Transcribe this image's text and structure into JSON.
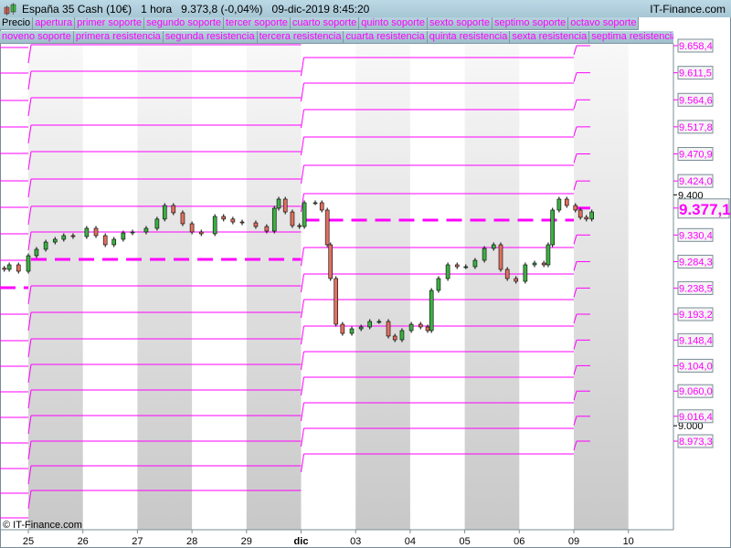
{
  "header": {
    "instrument": "España 35 Cash (10€)",
    "timeframe": "1 hora",
    "last": "9.373,8 (-0,04%)",
    "datetime": "09-dic-2019 8:45:20",
    "site": "IT-Finance.com"
  },
  "legend_row1": [
    "Precio",
    "apertura",
    "primer soporte",
    "segundo soporte",
    "tercer soporte",
    "cuarto soporte",
    "quinto soporte",
    "sexto soporte",
    "septimo soporte",
    "octavo soporte"
  ],
  "legend_row2": [
    "noveno soporte",
    "primera resistencia",
    "segunda resistencia",
    "tercera resistencia",
    "cuarta resistencia",
    "quinta resistencia",
    "sexta resistencia",
    "septima resistencia"
  ],
  "watermark": "© IT-Finance.com",
  "colors": {
    "levels": "#ff00ff",
    "up": "#3cb043",
    "down": "#e07060",
    "axis": "#7a8c96"
  },
  "chart_data": {
    "type": "candlestick",
    "x_tick_labels": [
      "25",
      "26",
      "27",
      "28",
      "29",
      "dic",
      "03",
      "04",
      "05",
      "06",
      "09",
      "10"
    ],
    "y_ticks": [
      "9.400",
      "9.000"
    ],
    "ylim": [
      8800,
      9660
    ],
    "current_price": "9.377,1",
    "current_levels": [
      "9.658,4",
      "9.611,5",
      "9.564,6",
      "9.517,8",
      "9.470,9",
      "9.424,0",
      "9.330,4",
      "9.284,3",
      "9.238,5",
      "9.193,2",
      "9.148,4",
      "9.104,0",
      "9.060,0",
      "9.016,4",
      "8.973,3"
    ],
    "level_periods": [
      {
        "from": -0.52,
        "to": 0,
        "pivot": 9239.1,
        "levels": [
          9655.2,
          9610.9,
          9563.5,
          9517.6,
          9471.7,
          9424.2,
          9378.3,
          9332.5,
          9286.6,
          9193.2,
          9147.3,
          9103.0,
          9058.7,
          9014.4,
          8970.1,
          8925.8,
          8883.1,
          8840.4
        ]
      },
      {
        "from": 0,
        "to": 5,
        "pivot": 9288.2,
        "levels": [
          9660,
          9614.1,
          9568.2,
          9520.8,
          9474.9,
          9427.4,
          9380.1,
          9335.6,
          9242.3,
          9196.4,
          9150.5,
          9106.2,
          9061.9,
          9017.6,
          8973.3,
          8930.6,
          8887.9
        ]
      },
      {
        "from": 5,
        "to": 10,
        "pivot": 9356.2,
        "levels": [
          9637.8,
          9593.5,
          9547.6,
          9500.2,
          9451.1,
          9402.1,
          9308.7,
          9262.8,
          9218.5,
          9172.6,
          9128.4,
          9084.1,
          9039.8,
          8995.5,
          8951.2
        ]
      },
      {
        "from": 10,
        "to": 10.3,
        "pivot": 9377.1,
        "levels": [
          9658.4,
          9611.5,
          9564.6,
          9517.8,
          9470.9,
          9424.0,
          9330.4,
          9284.3,
          9238.5,
          9193.2,
          9148.4,
          9104.0,
          9060.0,
          9016.4,
          8973.3
        ]
      }
    ],
    "prices": [
      [
        -0.44,
        9270.8
      ],
      [
        -0.35,
        9278.7
      ],
      [
        -0.18,
        9267.6
      ],
      [
        0,
        9294.5
      ],
      [
        0.15,
        9305.6
      ],
      [
        0.32,
        9318.2
      ],
      [
        0.49,
        9323.0
      ],
      [
        0.65,
        9329.3
      ],
      [
        0.82,
        9327.7
      ],
      [
        1.07,
        9342.0
      ],
      [
        1.24,
        9329.3
      ],
      [
        1.41,
        9313.5
      ],
      [
        1.57,
        9323.0
      ],
      [
        1.74,
        9334.0
      ],
      [
        1.91,
        9335.6
      ],
      [
        2.16,
        9342.0
      ],
      [
        2.36,
        9358.0
      ],
      [
        2.5,
        9381.5
      ],
      [
        2.66,
        9368.9
      ],
      [
        2.83,
        9349.9
      ],
      [
        3.0,
        9335.6
      ],
      [
        3.17,
        9332.5
      ],
      [
        3.42,
        9362.5
      ],
      [
        3.58,
        9358.0
      ],
      [
        3.75,
        9353.0
      ],
      [
        3.92,
        9351.5
      ],
      [
        4.17,
        9345.1
      ],
      [
        4.37,
        9337.2
      ],
      [
        4.51,
        9376.8
      ],
      [
        4.59,
        9392.6
      ],
      [
        4.71,
        9370.4
      ],
      [
        4.84,
        9346.7
      ],
      [
        4.97,
        9345.1
      ],
      [
        5.06,
        9386.3
      ],
      [
        5.26,
        9386.3
      ],
      [
        5.38,
        9373.6
      ],
      [
        5.48,
        9313.5
      ],
      [
        5.54,
        9255.0
      ],
      [
        5.64,
        9175.8
      ],
      [
        5.76,
        9160.0
      ],
      [
        5.93,
        9167.9
      ],
      [
        6.1,
        9171.1
      ],
      [
        6.26,
        9180.6
      ],
      [
        6.43,
        9180.6
      ],
      [
        6.6,
        9155.3
      ],
      [
        6.72,
        9148.9
      ],
      [
        6.85,
        9164.8
      ],
      [
        7.02,
        9175.8
      ],
      [
        7.19,
        9171.1
      ],
      [
        7.32,
        9164.8
      ],
      [
        7.39,
        9234.4
      ],
      [
        7.52,
        9255.0
      ],
      [
        7.69,
        9278.7
      ],
      [
        7.86,
        9275.5
      ],
      [
        8.02,
        9275.5
      ],
      [
        8.19,
        9286.6
      ],
      [
        8.36,
        9307.2
      ],
      [
        8.53,
        9313.5
      ],
      [
        8.66,
        9270.8
      ],
      [
        8.78,
        9255.0
      ],
      [
        8.94,
        9250.2
      ],
      [
        9.11,
        9278.7
      ],
      [
        9.28,
        9281.8
      ],
      [
        9.45,
        9278.7
      ],
      [
        9.53,
        9313.5
      ],
      [
        9.61,
        9373.6
      ],
      [
        9.73,
        9392.6
      ],
      [
        9.87,
        9381.5
      ],
      [
        10.03,
        9373.6
      ],
      [
        10.12,
        9361.0
      ],
      [
        10.23,
        9358.0
      ],
      [
        10.33,
        9370.4
      ]
    ]
  }
}
